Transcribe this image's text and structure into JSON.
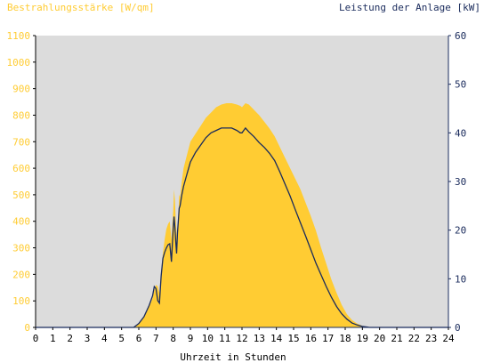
{
  "chart_data": {
    "type": "area",
    "title_left": "Bestrahlungsstärke [W/qm]",
    "title_right": "Leistung der Anlage [kW]",
    "xlabel": "Uhrzeit in Stunden",
    "xlim": [
      0,
      24
    ],
    "x_ticks": [
      0,
      1,
      2,
      3,
      4,
      5,
      6,
      7,
      8,
      9,
      10,
      11,
      12,
      13,
      14,
      15,
      16,
      17,
      18,
      19,
      20,
      21,
      22,
      23,
      24
    ],
    "y_left_lim": [
      0,
      1100
    ],
    "y_left_ticks": [
      0,
      100,
      200,
      300,
      400,
      500,
      600,
      700,
      800,
      900,
      1000,
      1100
    ],
    "y_right_lim": [
      0,
      60
    ],
    "y_right_ticks": [
      0,
      10,
      20,
      30,
      40,
      50,
      60
    ],
    "grid": false,
    "colors": {
      "irradiance_fill": "#ffcc33",
      "power_line": "#1a2b5c",
      "plot_background": "#dcdcdc",
      "left_axis_text": "#ffcc33",
      "right_axis_text": "#1a2b5c"
    },
    "series": [
      {
        "axis": "left",
        "style": "area",
        "x": [
          0,
          5.7,
          6,
          6.3,
          6.6,
          6.8,
          6.9,
          7.0,
          7.1,
          7.2,
          7.3,
          7.4,
          7.5,
          7.6,
          7.7,
          7.8,
          7.9,
          8.0,
          8.05,
          8.1,
          8.15,
          8.2,
          8.25,
          8.3,
          8.35,
          8.4,
          8.5,
          8.6,
          8.8,
          9.0,
          9.3,
          9.6,
          9.9,
          10.2,
          10.5,
          10.8,
          11.1,
          11.4,
          11.7,
          11.9,
          12.0,
          12.2,
          12.4,
          12.7,
          13.0,
          13.3,
          13.6,
          13.9,
          14.2,
          14.5,
          14.8,
          15.1,
          15.4,
          15.7,
          16.0,
          16.3,
          16.6,
          16.9,
          17.2,
          17.5,
          17.8,
          18.1,
          18.4,
          18.7,
          19.0,
          19.3,
          19.4,
          19.5,
          24
        ],
        "y": [
          0,
          0,
          15,
          40,
          80,
          110,
          140,
          160,
          155,
          130,
          210,
          280,
          330,
          370,
          390,
          400,
          330,
          440,
          520,
          480,
          400,
          350,
          310,
          420,
          500,
          490,
          550,
          600,
          650,
          700,
          730,
          760,
          790,
          810,
          830,
          840,
          845,
          845,
          840,
          835,
          830,
          845,
          840,
          820,
          800,
          775,
          750,
          720,
          680,
          640,
          600,
          560,
          520,
          470,
          420,
          365,
          300,
          240,
          180,
          130,
          85,
          50,
          28,
          14,
          6,
          2,
          0,
          0,
          0
        ],
        "values": [
          0,
          0,
          15,
          40,
          80,
          110,
          140,
          160,
          155,
          130,
          210,
          280,
          330,
          370,
          390,
          400,
          330,
          440,
          520,
          480,
          400,
          350,
          310,
          420,
          500,
          490,
          550,
          600,
          650,
          700,
          730,
          760,
          790,
          810,
          830,
          840,
          845,
          845,
          840,
          835,
          830,
          845,
          840,
          820,
          800,
          775,
          750,
          720,
          680,
          640,
          600,
          560,
          520,
          470,
          420,
          365,
          300,
          240,
          180,
          130,
          85,
          50,
          28,
          14,
          6,
          2,
          0,
          0,
          0
        ]
      },
      {
        "axis": "right",
        "style": "line",
        "x": [
          0,
          5.7,
          6,
          6.3,
          6.6,
          6.8,
          6.9,
          7.0,
          7.1,
          7.2,
          7.3,
          7.4,
          7.5,
          7.6,
          7.7,
          7.8,
          7.9,
          8.0,
          8.05,
          8.1,
          8.15,
          8.2,
          8.25,
          8.3,
          8.35,
          8.4,
          8.5,
          8.6,
          8.8,
          9.0,
          9.3,
          9.6,
          9.9,
          10.2,
          10.5,
          10.8,
          11.1,
          11.4,
          11.7,
          11.9,
          12.0,
          12.2,
          12.4,
          12.7,
          13.0,
          13.3,
          13.6,
          13.9,
          14.2,
          14.5,
          14.8,
          15.1,
          15.4,
          15.7,
          16.0,
          16.3,
          16.6,
          16.9,
          17.2,
          17.5,
          17.8,
          18.1,
          18.4,
          18.7,
          19.0,
          19.3,
          19.4,
          19.5,
          24
        ],
        "y": [
          0,
          0,
          0.8,
          2.2,
          4.5,
          6.5,
          8.4,
          8.0,
          5.5,
          5.0,
          10.5,
          14.2,
          15.4,
          16.3,
          17.0,
          17.2,
          13.5,
          20.5,
          22.8,
          20.5,
          17.5,
          15.2,
          19.5,
          22.0,
          24.5,
          25.0,
          27.2,
          29.0,
          31.5,
          34.0,
          36.0,
          37.5,
          39.0,
          40.0,
          40.5,
          41.0,
          41.0,
          41.0,
          40.5,
          40.0,
          40.0,
          41.0,
          40.2,
          39.2,
          38.0,
          37.0,
          35.8,
          34.3,
          32.0,
          29.5,
          27.0,
          24.2,
          21.5,
          18.8,
          16.0,
          13.2,
          10.8,
          8.4,
          6.2,
          4.3,
          2.8,
          1.7,
          0.9,
          0.5,
          0.2,
          0.05,
          0,
          0,
          0
        ],
        "values": [
          0,
          0,
          0.8,
          2.2,
          4.5,
          6.5,
          8.4,
          8.0,
          5.5,
          5.0,
          10.5,
          14.2,
          15.4,
          16.3,
          17.0,
          17.2,
          13.5,
          20.5,
          22.8,
          20.5,
          17.5,
          15.2,
          19.5,
          22.0,
          24.5,
          25.0,
          27.2,
          29.0,
          31.5,
          34.0,
          36.0,
          37.5,
          39.0,
          40.0,
          40.5,
          41.0,
          41.0,
          41.0,
          40.5,
          40.0,
          40.0,
          41.0,
          40.2,
          39.2,
          38.0,
          37.0,
          35.8,
          34.3,
          32.0,
          29.5,
          27.0,
          24.2,
          21.5,
          18.8,
          16.0,
          13.2,
          10.8,
          8.4,
          6.2,
          4.3,
          2.8,
          1.7,
          0.9,
          0.5,
          0.2,
          0.05,
          0,
          0,
          0
        ]
      }
    ]
  }
}
